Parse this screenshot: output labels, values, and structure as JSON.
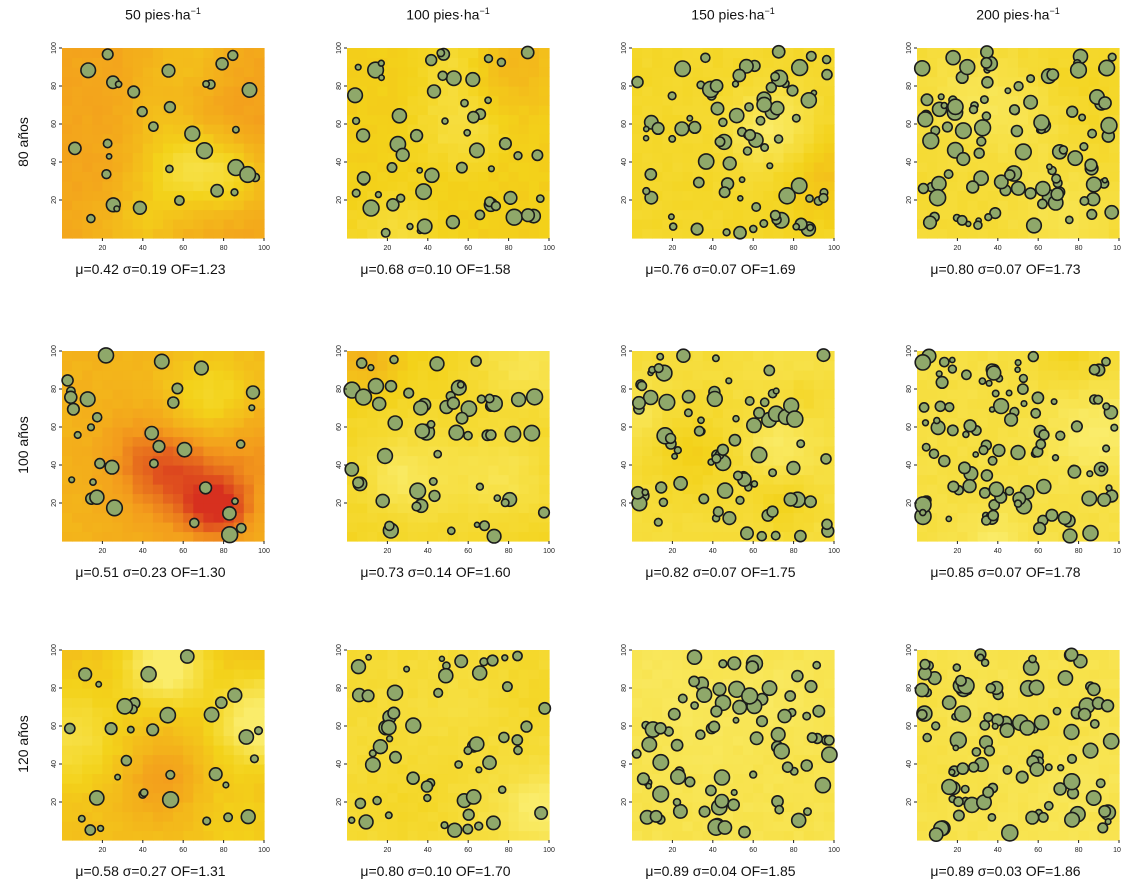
{
  "chart_data": {
    "type": "scatter",
    "description_note": "",
    "col_titles": [
      {
        "main": "50 pies·ha",
        "exp": "−1"
      },
      {
        "main": "100 pies·ha",
        "exp": "−1"
      },
      {
        "main": "150 pies·ha",
        "exp": "−1"
      },
      {
        "main": "200 pies·ha",
        "exp": "−1"
      }
    ],
    "row_titles": [
      "80 años",
      "100 años",
      "120 años"
    ],
    "xlim": [
      0,
      100
    ],
    "ylim": [
      0,
      100
    ],
    "x_ticks": [
      "20",
      "40",
      "60",
      "80",
      "100"
    ],
    "y_ticks": [
      "20",
      "40",
      "60",
      "80",
      "100"
    ],
    "colors": {
      "low": "#d7301f",
      "mid": "#f39a1c",
      "high": "#f3d21a",
      "top": "#faec6a",
      "tree_fill": "#8fa86a",
      "tree_stroke": "#1b1b1b"
    },
    "panels": [
      {
        "row": 0,
        "col": 0,
        "density": 50,
        "mu": 0.42,
        "sigma": 0.19,
        "of": 1.23,
        "label": "μ=0.42 σ=0.19 OF=1.23"
      },
      {
        "row": 0,
        "col": 1,
        "density": 100,
        "mu": 0.68,
        "sigma": 0.1,
        "of": 1.58,
        "label": "μ=0.68 σ=0.10 OF=1.58"
      },
      {
        "row": 0,
        "col": 2,
        "density": 150,
        "mu": 0.76,
        "sigma": 0.07,
        "of": 1.69,
        "label": "μ=0.76 σ=0.07 OF=1.69"
      },
      {
        "row": 0,
        "col": 3,
        "density": 200,
        "mu": 0.8,
        "sigma": 0.07,
        "of": 1.73,
        "label": "μ=0.80 σ=0.07 OF=1.73"
      },
      {
        "row": 1,
        "col": 0,
        "density": 50,
        "mu": 0.51,
        "sigma": 0.23,
        "of": 1.3,
        "label": "μ=0.51 σ=0.23 OF=1.30"
      },
      {
        "row": 1,
        "col": 1,
        "density": 100,
        "mu": 0.73,
        "sigma": 0.14,
        "of": 1.6,
        "label": "μ=0.73 σ=0.14 OF=1.60"
      },
      {
        "row": 1,
        "col": 2,
        "density": 150,
        "mu": 0.82,
        "sigma": 0.07,
        "of": 1.75,
        "label": "μ=0.82 σ=0.07 OF=1.75"
      },
      {
        "row": 1,
        "col": 3,
        "density": 200,
        "mu": 0.85,
        "sigma": 0.07,
        "of": 1.78,
        "label": "μ=0.85 σ=0.07 OF=1.78"
      },
      {
        "row": 2,
        "col": 0,
        "density": 50,
        "mu": 0.58,
        "sigma": 0.27,
        "of": 1.31,
        "label": "μ=0.58 σ=0.27 OF=1.31"
      },
      {
        "row": 2,
        "col": 1,
        "density": 100,
        "mu": 0.8,
        "sigma": 0.1,
        "of": 1.7,
        "label": "μ=0.80 σ=0.10 OF=1.70"
      },
      {
        "row": 2,
        "col": 2,
        "density": 150,
        "mu": 0.89,
        "sigma": 0.04,
        "of": 1.85,
        "label": "μ=0.89 σ=0.04 OF=1.85"
      },
      {
        "row": 2,
        "col": 3,
        "density": 200,
        "mu": 0.89,
        "sigma": 0.03,
        "of": 1.86,
        "label": "μ=0.89 σ=0.03 OF=1.86"
      }
    ]
  }
}
